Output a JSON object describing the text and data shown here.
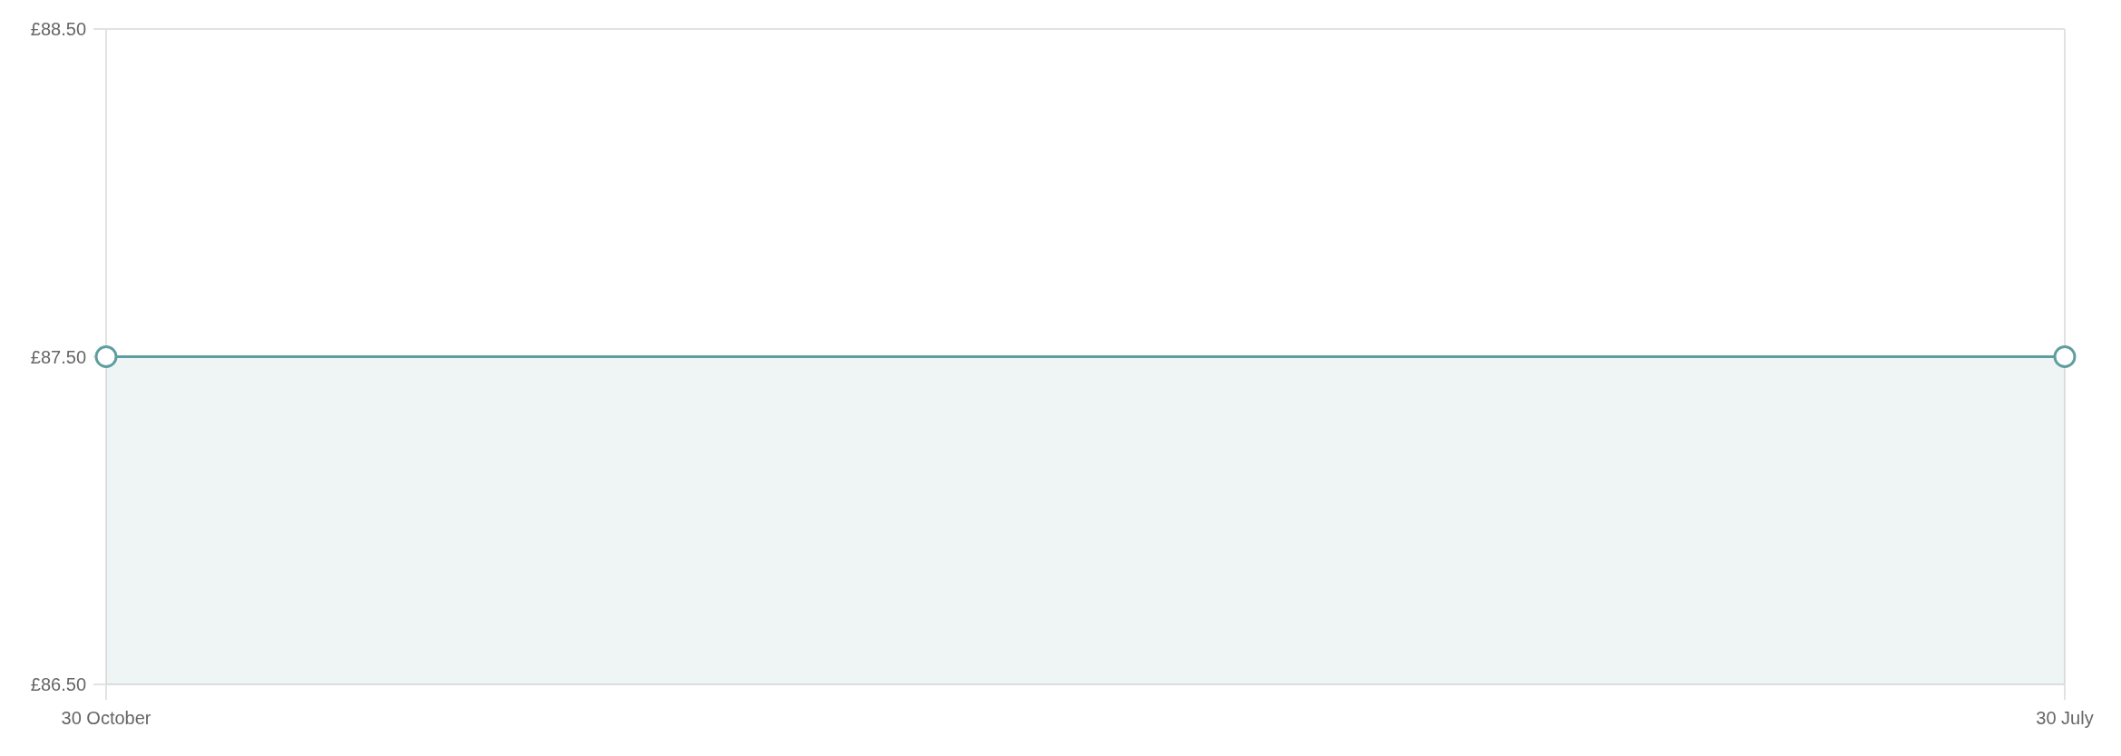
{
  "chart_data": {
    "type": "area",
    "categories": [
      "30 October",
      "30 July"
    ],
    "values": [
      87.5,
      87.5
    ],
    "color": "#5f9ea0",
    "ylim": [
      86.5,
      88.5
    ],
    "yticks": [
      {
        "value": 86.5,
        "label": "£86.50"
      },
      {
        "value": 87.5,
        "label": "£87.50"
      },
      {
        "value": 88.5,
        "label": "£88.50"
      }
    ],
    "grid": true,
    "marker": "circle",
    "line_style": "solid"
  }
}
